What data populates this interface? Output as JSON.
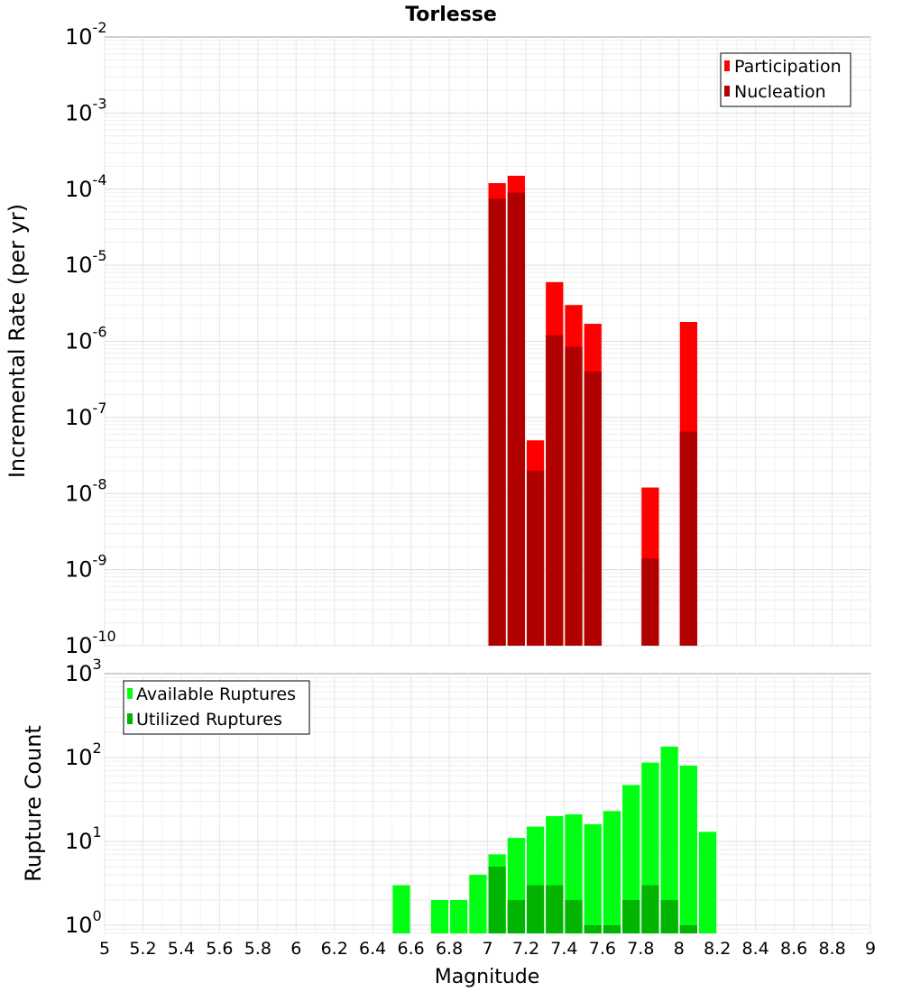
{
  "title": "Torlesse",
  "xlabel": "Magnitude",
  "x_ticks": [
    "5",
    "5.2",
    "5.4",
    "5.6",
    "5.8",
    "6",
    "6.2",
    "6.4",
    "6.6",
    "6.8",
    "7",
    "7.2",
    "7.4",
    "7.6",
    "7.8",
    "8",
    "8.2",
    "8.4",
    "8.6",
    "8.8",
    "9"
  ],
  "colors": {
    "participation": "#ff0000",
    "nucleation": "#b00000",
    "available": "#00ff12",
    "utilized": "#00b400"
  },
  "chart_data": [
    {
      "type": "bar",
      "ylabel": "Incremental Rate (per yr)",
      "scale": "log",
      "xlim": [
        5,
        9
      ],
      "ylim": [
        1e-10,
        0.01
      ],
      "y_ticks": [
        {
          "base": "10",
          "exp": "-10",
          "value": 1e-10
        },
        {
          "base": "10",
          "exp": "-9",
          "value": 1e-09
        },
        {
          "base": "10",
          "exp": "-8",
          "value": 1e-08
        },
        {
          "base": "10",
          "exp": "-7",
          "value": 1e-07
        },
        {
          "base": "10",
          "exp": "-6",
          "value": 1e-06
        },
        {
          "base": "10",
          "exp": "-5",
          "value": 1e-05
        },
        {
          "base": "10",
          "exp": "-4",
          "value": 0.0001
        },
        {
          "base": "10",
          "exp": "-3",
          "value": 0.001
        },
        {
          "base": "10",
          "exp": "-2",
          "value": 0.01
        }
      ],
      "legend": "top-right",
      "grid": true,
      "x": [
        7.05,
        7.15,
        7.25,
        7.35,
        7.45,
        7.55,
        7.85,
        8.05
      ],
      "series": [
        {
          "name": "Participation",
          "values": [
            0.00012,
            0.00015,
            5e-08,
            6e-06,
            3e-06,
            1.7e-06,
            1.2e-08,
            1.8e-06
          ]
        },
        {
          "name": "Nucleation",
          "values": [
            7.5e-05,
            9e-05,
            2e-08,
            1.2e-06,
            8.5e-07,
            4e-07,
            1.4e-09,
            6.5e-08
          ]
        }
      ]
    },
    {
      "type": "bar",
      "ylabel": "Rupture Count",
      "scale": "log",
      "xlim": [
        5,
        9
      ],
      "ylim": [
        0.8,
        1000
      ],
      "y_ticks": [
        {
          "base": "10",
          "exp": "0",
          "value": 1
        },
        {
          "base": "10",
          "exp": "1",
          "value": 10
        },
        {
          "base": "10",
          "exp": "2",
          "value": 100
        },
        {
          "base": "10",
          "exp": "3",
          "value": 1000
        }
      ],
      "legend": "top-left",
      "grid": true,
      "x": [
        6.55,
        6.75,
        6.85,
        6.95,
        7.05,
        7.15,
        7.25,
        7.35,
        7.45,
        7.55,
        7.65,
        7.75,
        7.85,
        7.95,
        8.05,
        8.15
      ],
      "series": [
        {
          "name": "Available Ruptures",
          "values": [
            3,
            2,
            2,
            4,
            7,
            11,
            15,
            20,
            21,
            16,
            23,
            47,
            87,
            135,
            80,
            13
          ]
        },
        {
          "name": "Utilized Ruptures",
          "values": [
            null,
            null,
            null,
            null,
            5,
            2,
            3,
            3,
            2,
            1,
            1,
            2,
            3,
            2,
            1,
            null
          ]
        }
      ]
    }
  ]
}
